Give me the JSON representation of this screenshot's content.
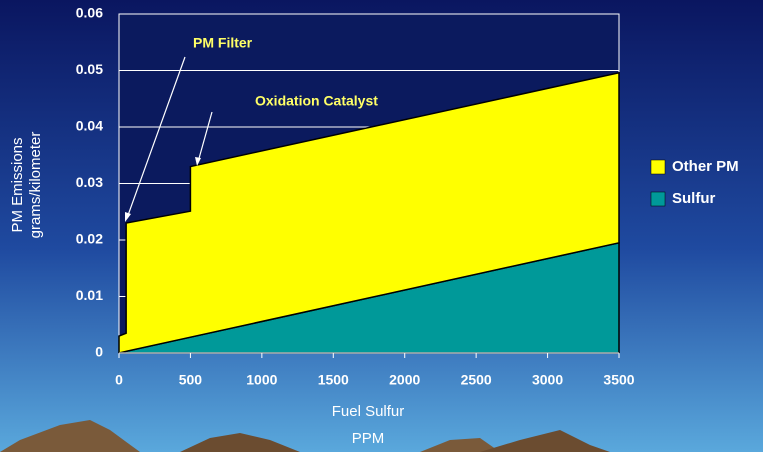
{
  "chart_data": {
    "type": "stacked_area",
    "x_label": [
      "Fuel Sulfur",
      "PPM"
    ],
    "y_label": [
      "PM Emissions",
      "grams/kilometer"
    ],
    "annotations": [
      "PM Filter",
      "Oxidation Catalyst"
    ],
    "x": [
      0,
      50,
      50,
      500,
      500,
      3500
    ],
    "series": [
      {
        "name": "Sulfur",
        "color": "#009999",
        "values": [
          0,
          0.0003,
          0.0003,
          0.0028,
          0.0028,
          0.0195
        ]
      },
      {
        "name": "Other PM",
        "color": "#ffff00",
        "values": [
          0.003,
          0.0032,
          0.0227,
          0.0223,
          0.0302,
          0.0301
        ]
      }
    ],
    "xlim": [
      0,
      3500
    ],
    "xticks": [
      0,
      500,
      1000,
      1500,
      2000,
      2500,
      3000,
      3500
    ],
    "ylim": [
      0,
      0.06
    ],
    "yticks": [
      0,
      0.01,
      0.02,
      0.03,
      0.04,
      0.05,
      0.06
    ],
    "grid": true
  }
}
